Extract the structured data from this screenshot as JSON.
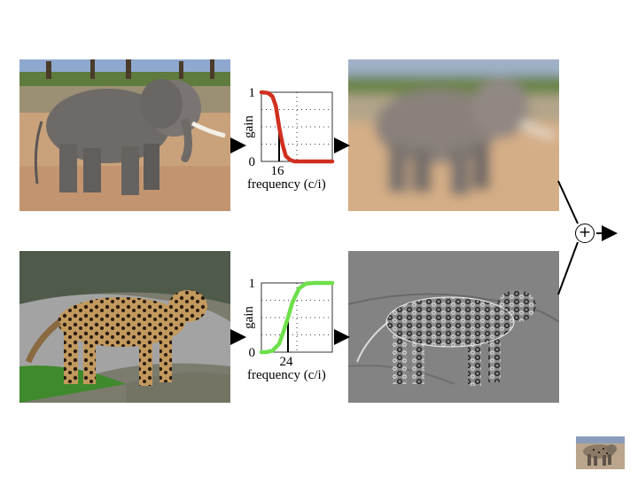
{
  "filters": [
    {
      "id": "lowpass",
      "chart_data": {
        "type": "line",
        "ylabel": "gain",
        "xlabel": "frequency (c/i)",
        "ytick_labels": [
          "0",
          "1"
        ],
        "cutoff_label": "16",
        "cutoff": 16,
        "xlim": [
          0,
          64
        ],
        "ylim": [
          0,
          1
        ],
        "grid": true,
        "series": [
          {
            "color": "#d03020",
            "x": [
              0,
              6,
              10,
              13,
              16,
              19,
              22,
              26,
              30,
              40,
              64
            ],
            "values": [
              1,
              0.99,
              0.94,
              0.8,
              0.5,
              0.25,
              0.08,
              0.02,
              0,
              0,
              0
            ]
          }
        ]
      }
    },
    {
      "id": "highpass",
      "chart_data": {
        "type": "line",
        "ylabel": "gain",
        "xlabel": "frequency (c/i)",
        "ytick_labels": [
          "0",
          "1"
        ],
        "cutoff_label": "24",
        "cutoff": 24,
        "xlim": [
          0,
          64
        ],
        "ylim": [
          0,
          1
        ],
        "grid": true,
        "series": [
          {
            "color": "#6ee04a",
            "x": [
              0,
              4,
              10,
              16,
              20,
              24,
              28,
              34,
              40,
              48,
              64
            ],
            "values": [
              0,
              0,
              0.02,
              0.12,
              0.3,
              0.5,
              0.72,
              0.92,
              0.99,
              1,
              1
            ]
          }
        ]
      }
    }
  ],
  "combine_symbol": "+",
  "colors": {
    "arrow": "#000000",
    "grid": "#000000"
  },
  "images": [
    "elephant-photo",
    "elephant-blurred",
    "leopard-photo",
    "leopard-edges",
    "hybrid-thumbnail"
  ]
}
